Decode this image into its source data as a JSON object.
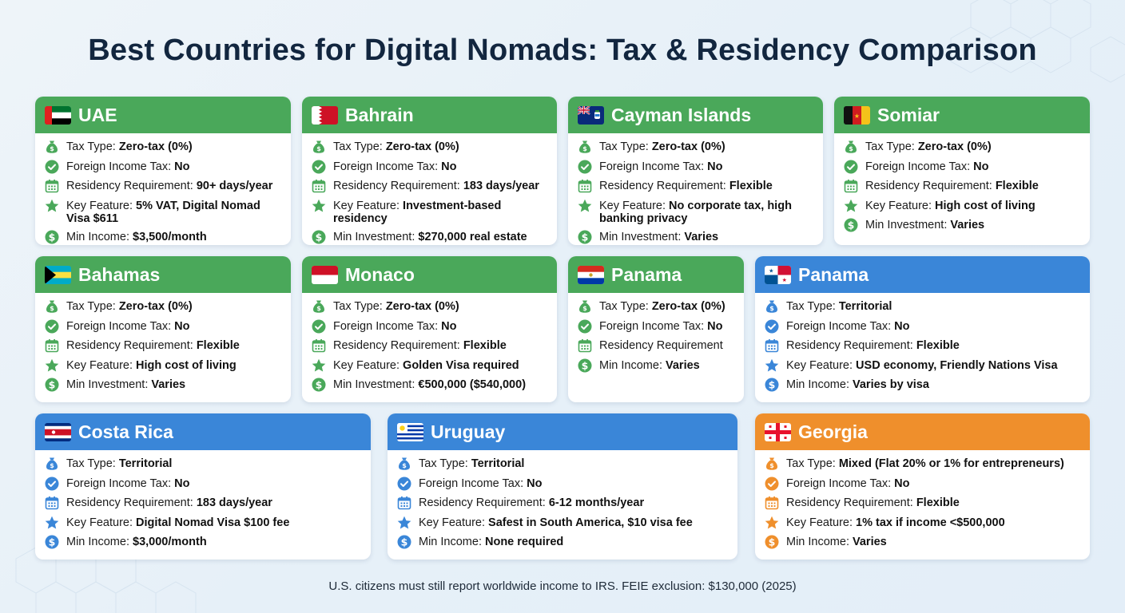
{
  "title": "Best Countries for Digital Nomads: Tax & Residency Comparison",
  "footer": "U.S. citizens must still report worldwide income to IRS. FEIE exclusion: $130,000 (2025)",
  "colors": {
    "green": "#4aa85a",
    "blue": "#3a86d8",
    "orange": "#ef8f2c",
    "title": "#12263f"
  },
  "cards": [
    {
      "name": "UAE",
      "color": "green",
      "flag": "uae-flag-icon",
      "rows": [
        {
          "icon": "money-bag-icon",
          "label": "Tax Type: ",
          "value": "Zero-tax (0%)"
        },
        {
          "icon": "check-circle-icon",
          "label": "Foreign Income Tax: ",
          "value": "No"
        },
        {
          "icon": "calendar-icon",
          "label": "Residency Requirement: ",
          "value": "90+ days/year"
        },
        {
          "icon": "star-icon",
          "label": "Key Feature: ",
          "value": "5% VAT, Digital Nomad Visa $611"
        },
        {
          "icon": "dollar-circle-icon",
          "label": "Min Income: ",
          "value": "$3,500/month"
        }
      ]
    },
    {
      "name": "Bahrain",
      "color": "green",
      "flag": "bahrain-flag-icon",
      "rows": [
        {
          "icon": "money-bag-icon",
          "label": "Tax Type: ",
          "value": "Zero-tax (0%)"
        },
        {
          "icon": "check-circle-icon",
          "label": "Foreign Income Tax: ",
          "value": "No"
        },
        {
          "icon": "calendar-icon",
          "label": "Residency Requirement: ",
          "value": "183 days/year"
        },
        {
          "icon": "star-icon",
          "label": "Key Feature: ",
          "value": "Investment-based residency"
        },
        {
          "icon": "dollar-circle-icon",
          "label": "Min Investment: ",
          "value": "$270,000 real estate"
        }
      ]
    },
    {
      "name": "Cayman Islands",
      "color": "green",
      "flag": "cayman-flag-icon",
      "rows": [
        {
          "icon": "money-bag-icon",
          "label": "Tax Type: ",
          "value": "Zero-tax (0%)"
        },
        {
          "icon": "check-circle-icon",
          "label": "Foreign Income Tax: ",
          "value": "No"
        },
        {
          "icon": "calendar-icon",
          "label": "Residency Requirement: ",
          "value": "Flexible"
        },
        {
          "icon": "star-icon",
          "label": "Key Feature: ",
          "value": "No corporate tax, high banking privacy"
        },
        {
          "icon": "dollar-circle-icon",
          "label": "Min Investment: ",
          "value": "Varies"
        }
      ]
    },
    {
      "name": "Somiar",
      "color": "green",
      "flag": "somiar-flag-icon",
      "rows": [
        {
          "icon": "money-bag-icon",
          "label": "Tax Type: ",
          "value": "Zero-tax (0%)"
        },
        {
          "icon": "check-circle-icon",
          "label": "Foreign Income Tax: ",
          "value": "No"
        },
        {
          "icon": "calendar-icon",
          "label": "Residency Requirement: ",
          "value": "Flexible"
        },
        {
          "icon": "star-icon",
          "label": "Key Feature: ",
          "value": "High cost of living"
        },
        {
          "icon": "dollar-circle-icon",
          "label": "Min Investment: ",
          "value": "Varies"
        }
      ]
    },
    {
      "name": "Bahamas",
      "color": "green",
      "flag": "bahamas-flag-icon",
      "rows": [
        {
          "icon": "money-bag-icon",
          "label": "Tax Type: ",
          "value": "Zero-tax (0%)"
        },
        {
          "icon": "check-circle-icon",
          "label": "Foreign Income Tax: ",
          "value": "No"
        },
        {
          "icon": "calendar-icon",
          "label": "Residency Requirement: ",
          "value": "Flexible"
        },
        {
          "icon": "star-icon",
          "label": "Key Feature: ",
          "value": "High cost of living"
        },
        {
          "icon": "dollar-circle-icon",
          "label": "Min Investment: ",
          "value": "Varies"
        }
      ]
    },
    {
      "name": "Monaco",
      "color": "green",
      "flag": "monaco-flag-icon",
      "rows": [
        {
          "icon": "money-bag-icon",
          "label": "Tax Type: ",
          "value": "Zero-tax (0%)"
        },
        {
          "icon": "check-circle-icon",
          "label": "Foreign Income Tax: ",
          "value": "No"
        },
        {
          "icon": "calendar-icon",
          "label": "Residency Requirement: ",
          "value": "Flexible"
        },
        {
          "icon": "star-icon",
          "label": "Key Feature: ",
          "value": "Golden Visa required"
        },
        {
          "icon": "dollar-circle-icon",
          "label": "Min Investment: ",
          "value": "€500,000 ($540,000)"
        }
      ]
    },
    {
      "name": "Panama",
      "color": "green",
      "flag": "paraguay-style-flag-icon",
      "rows": [
        {
          "icon": "money-bag-icon",
          "label": "Tax Type: ",
          "value": "Zero-tax (0%)"
        },
        {
          "icon": "check-circle-icon",
          "label": "Foreign Income Tax: ",
          "value": "No"
        },
        {
          "icon": "calendar-icon",
          "label": "Residency Requirement",
          "value": ""
        },
        {
          "icon": "dollar-circle-icon",
          "label": "Min Income: ",
          "value": "Varies"
        }
      ]
    },
    {
      "name": "Panama",
      "color": "blue",
      "flag": "panama-flag-icon",
      "rows": [
        {
          "icon": "money-bag-icon",
          "label": "Tax Type: ",
          "value": "Territorial"
        },
        {
          "icon": "check-circle-icon",
          "label": "Foreign Income Tax: ",
          "value": "No"
        },
        {
          "icon": "calendar-icon",
          "label": "Residency Requirement: ",
          "value": "Flexible"
        },
        {
          "icon": "star-icon",
          "label": "Key Feature: ",
          "value": "USD economy, Friendly Nations Visa"
        },
        {
          "icon": "dollar-circle-icon",
          "label": "Min Income: ",
          "value": "Varies by visa"
        }
      ]
    },
    {
      "name": "Costa Rica",
      "color": "blue",
      "flag": "costa-rica-flag-icon",
      "rows": [
        {
          "icon": "money-bag-icon",
          "label": "Tax Type: ",
          "value": "Territorial"
        },
        {
          "icon": "check-circle-icon",
          "label": "Foreign Income Tax: ",
          "value": "No"
        },
        {
          "icon": "calendar-icon",
          "label": "Residency Requirement: ",
          "value": "183 days/year"
        },
        {
          "icon": "star-icon",
          "label": "Key Feature: ",
          "value": "Digital Nomad Visa $100 fee"
        },
        {
          "icon": "dollar-circle-icon",
          "label": "Min Income: ",
          "value": "$3,000/month"
        }
      ]
    },
    {
      "name": "Uruguay",
      "color": "blue",
      "flag": "uruguay-flag-icon",
      "rows": [
        {
          "icon": "money-bag-icon",
          "label": "Tax Type: ",
          "value": "Territorial"
        },
        {
          "icon": "check-circle-icon",
          "label": "Foreign Income Tax: ",
          "value": "No"
        },
        {
          "icon": "calendar-icon",
          "label": "Residency Requirement: ",
          "value": "6-12 months/year"
        },
        {
          "icon": "star-icon",
          "label": "Key Feature: ",
          "value": "Safest in South America, $10 visa fee"
        },
        {
          "icon": "dollar-circle-icon",
          "label": "Min Income: ",
          "value": "None required"
        }
      ]
    },
    {
      "name": "Georgia",
      "color": "orange",
      "flag": "georgia-flag-icon",
      "rows": [
        {
          "icon": "money-bag-icon",
          "label": "Tax Type: ",
          "value": "Mixed (Flat 20% or 1% for entrepreneurs)"
        },
        {
          "icon": "check-circle-icon",
          "label": "Foreign Income Tax: ",
          "value": "No"
        },
        {
          "icon": "calendar-icon",
          "label": "Residency Requirement: ",
          "value": "Flexible"
        },
        {
          "icon": "star-icon",
          "label": "Key Feature: ",
          "value": "1% tax if income <$500,000"
        },
        {
          "icon": "dollar-circle-icon",
          "label": "Min Income: ",
          "value": "Varies"
        }
      ]
    }
  ]
}
